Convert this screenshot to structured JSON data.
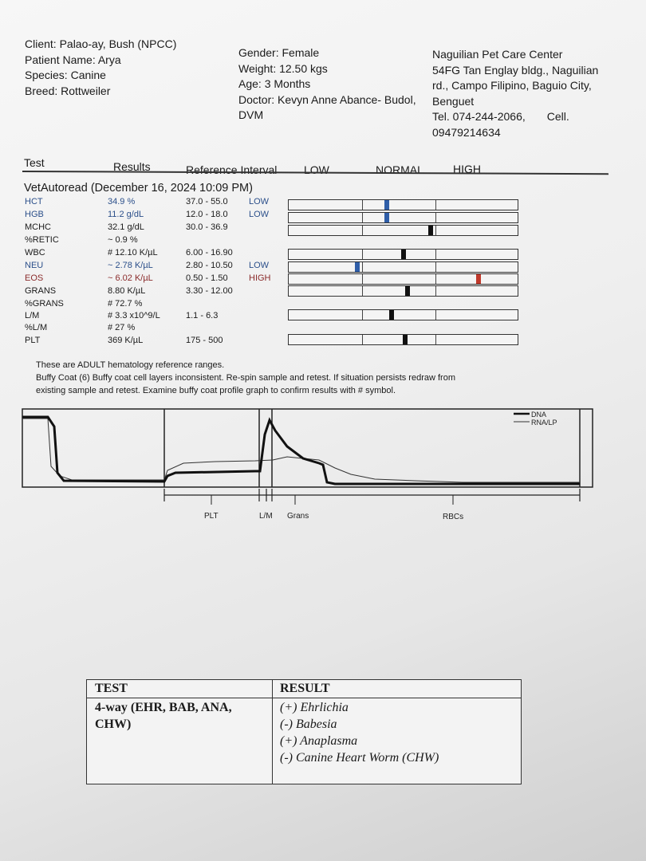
{
  "client": {
    "client": "Client: Palao-ay, Bush (NPCC)",
    "patient": "Patient Name: Arya",
    "species": "Species: Canine",
    "breed": "Breed: Rottweiler"
  },
  "patient_info": {
    "gender": "Gender: Female",
    "weight": "Weight: 12.50 kgs",
    "age": "Age: 3 Months",
    "doctor1": "Doctor: Kevyn Anne Abance- Budol,",
    "doctor2": "DVM"
  },
  "clinic": {
    "line1": "Naguilian Pet Care Center",
    "line2": "54FG Tan Englay bldg., Naguilian",
    "line3": "rd., Campo Filipino, Baguio City,",
    "line4": "Benguet",
    "line5": "Tel. 074-244-2066,",
    "cell_label": "Cell.",
    "line6": "09479214634"
  },
  "table_header": {
    "test": "Test",
    "results": "Results",
    "ref": "Reference Interval",
    "low": "LOW",
    "normal": "NORMAL",
    "high": "HIGH"
  },
  "vetautoread": "VetAutoread (December 16, 2024 10:09 PM)",
  "rows": [
    {
      "test": "HCT",
      "result": "34.9 %",
      "ref": "37.0 - 55.0",
      "flag": "LOW",
      "level": 0.43
    },
    {
      "test": "HGB",
      "result": "11.2 g/dL",
      "ref": "12.0 - 18.0",
      "flag": "LOW",
      "level": 0.43
    },
    {
      "test": "MCHC",
      "result": "32.1 g/dL",
      "ref": "30.0 - 36.9",
      "flag": "",
      "level": 0.62
    },
    {
      "test": "%RETIC",
      "result": "~ 0.9 %",
      "ref": "",
      "flag": ""
    },
    {
      "test": "WBC",
      "result": "# 12.10 K/µL",
      "ref": "6.00 - 16.90",
      "flag": "",
      "level": 0.5
    },
    {
      "test": "NEU",
      "result": "~ 2.78 K/µL",
      "ref": "2.80 - 10.50",
      "flag": "LOW",
      "level": 0.3
    },
    {
      "test": "EOS",
      "result": "~ 6.02 K/µL",
      "ref": "0.50 - 1.50",
      "flag": "HIGH",
      "level": 0.83
    },
    {
      "test": "GRANS",
      "result": "8.80 K/µL",
      "ref": "3.30 - 12.00",
      "flag": "",
      "level": 0.52
    },
    {
      "test": "%GRANS",
      "result": "# 72.7 %",
      "ref": "",
      "flag": ""
    },
    {
      "test": "L/M",
      "result": "# 3.3 x10^9/L",
      "ref": "1.1 - 6.3",
      "flag": "",
      "level": 0.45
    },
    {
      "test": "%L/M",
      "result": "# 27 %",
      "ref": "",
      "flag": ""
    },
    {
      "test": "PLT",
      "result": "369 K/µL",
      "ref": "175 - 500",
      "flag": "",
      "level": 0.51
    }
  ],
  "notes": {
    "n1": "These are ADULT hematology reference ranges.",
    "n2": "Buffy Coat (6)  Buffy coat cell layers inconsistent.  Re-spin sample and retest.  If situation persists redraw from",
    "n3": "existing sample and retest.  Examine buffy coat profile graph to confirm results with # symbol."
  },
  "graph": {
    "legend_dna": "DNA",
    "legend_rna": "RNA/LP",
    "label_plt": "PLT",
    "label_lm": "L/M",
    "label_grans": "Grans",
    "label_rbcs": "RBCs"
  },
  "tests4way": {
    "h_test": "TEST",
    "h_result": "RESULT",
    "test1": "4-way (EHR, BAB, ANA,",
    "test2": "CHW)",
    "r1": "(+) Ehrlichia",
    "r2": "(-) Babesia",
    "r3": "(+) Anaplasma",
    "r4": "(-) Canine Heart Worm (CHW)"
  },
  "colors": {
    "low_marker": "#2f5ea8",
    "high_marker": "#c0392b",
    "normal_marker": "#111111"
  }
}
